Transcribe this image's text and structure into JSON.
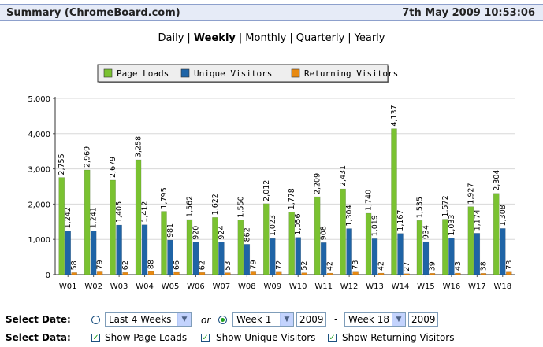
{
  "header": {
    "title": "Summary (ChromeBoard.com)",
    "datetime": "7th May 2009 10:53:06"
  },
  "periods": [
    {
      "label": "Daily",
      "active": false
    },
    {
      "label": "Weekly",
      "active": true
    },
    {
      "label": "Monthly",
      "active": false
    },
    {
      "label": "Quarterly",
      "active": false
    },
    {
      "label": "Yearly",
      "active": false
    }
  ],
  "chart_data": {
    "type": "bar",
    "categories": [
      "W01",
      "W02",
      "W03",
      "W04",
      "W05",
      "W06",
      "W07",
      "W08",
      "W09",
      "W10",
      "W11",
      "W12",
      "W13",
      "W14",
      "W15",
      "W16",
      "W17",
      "W18"
    ],
    "series": [
      {
        "name": "Page Loads",
        "color": "#7ac231",
        "values": [
          2755,
          2969,
          2679,
          3258,
          1795,
          1562,
          1622,
          1550,
          2012,
          1778,
          2209,
          2431,
          1740,
          4137,
          1535,
          1572,
          1927,
          2304
        ]
      },
      {
        "name": "Unique Visitors",
        "color": "#1f64a6",
        "values": [
          1242,
          1241,
          1405,
          1412,
          981,
          920,
          924,
          862,
          1023,
          1056,
          908,
          1304,
          1019,
          1167,
          934,
          1033,
          1174,
          1308
        ]
      },
      {
        "name": "Returning Visitors",
        "color": "#e88a12",
        "values": [
          58,
          79,
          62,
          88,
          66,
          62,
          53,
          79,
          72,
          52,
          42,
          73,
          42,
          27,
          39,
          43,
          38,
          73
        ]
      }
    ],
    "yticks": [
      "0",
      "1,000",
      "2,000",
      "3,000",
      "4,000",
      "5,000"
    ],
    "ylim": [
      0,
      5000
    ],
    "grid": true,
    "legend": "top-center"
  },
  "controls": {
    "select_date_label": "Select Date:",
    "range_select": "Last 4 Weeks",
    "or_text": "or",
    "from_week": "Week 1",
    "from_year": "2009",
    "dash": "-",
    "to_week": "Week 18",
    "to_year": "2009",
    "select_data_label": "Select Data:",
    "show_page_loads": "Show Page Loads",
    "show_unique_visitors": "Show Unique Visitors",
    "show_returning_visitors": "Show Returning Visitors"
  }
}
